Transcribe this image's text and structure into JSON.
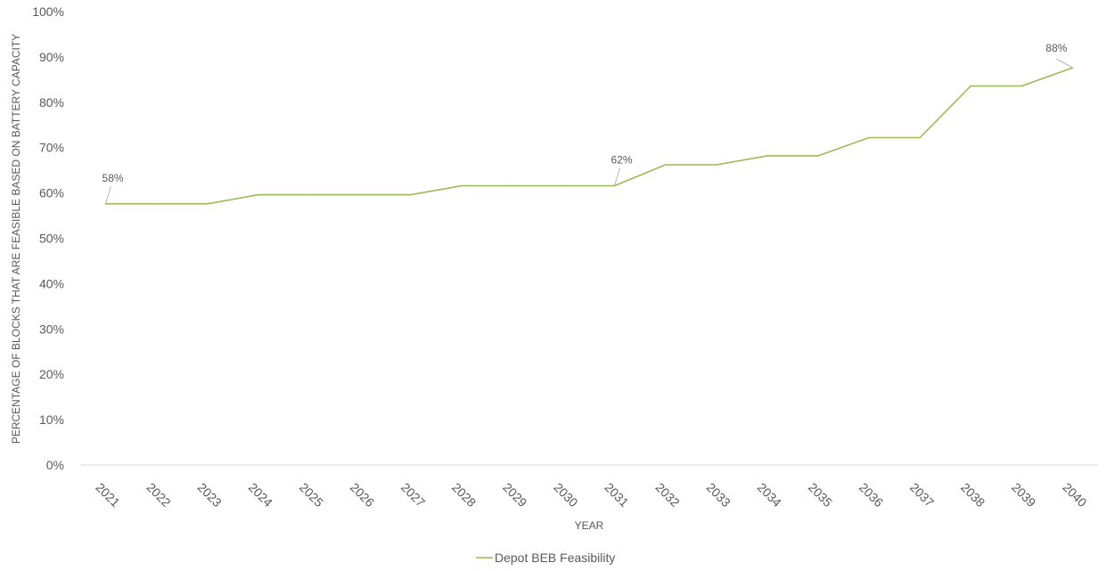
{
  "chart_data": {
    "type": "line",
    "title": "",
    "xlabel": "YEAR",
    "ylabel": "PERCENTAGE OF BLOCKS THAT ARE FEASIBLE BASED ON BATTERY CAPACITY",
    "ylim": [
      0,
      100
    ],
    "yticks": [
      "0%",
      "10%",
      "20%",
      "30%",
      "40%",
      "50%",
      "60%",
      "70%",
      "80%",
      "90%",
      "100%"
    ],
    "categories": [
      "2021",
      "2022",
      "2023",
      "2024",
      "2025",
      "2026",
      "2027",
      "2028",
      "2029",
      "2030",
      "2031",
      "2032",
      "2033",
      "2034",
      "2035",
      "2036",
      "2037",
      "2038",
      "2039",
      "2040"
    ],
    "series": [
      {
        "name": "Depot BEB Feasibility",
        "color": "#9BBB59",
        "values": [
          57.6,
          57.6,
          57.6,
          59.6,
          59.6,
          59.6,
          59.6,
          61.6,
          61.6,
          61.6,
          61.6,
          66.2,
          66.2,
          68.2,
          68.2,
          72.2,
          72.2,
          83.6,
          83.6,
          87.6
        ]
      }
    ],
    "data_labels": [
      {
        "category": "2021",
        "text": "58%"
      },
      {
        "category": "2031",
        "text": "62%"
      },
      {
        "category": "2040",
        "text": "88%"
      }
    ],
    "grid": false,
    "legend_position": "bottom"
  }
}
